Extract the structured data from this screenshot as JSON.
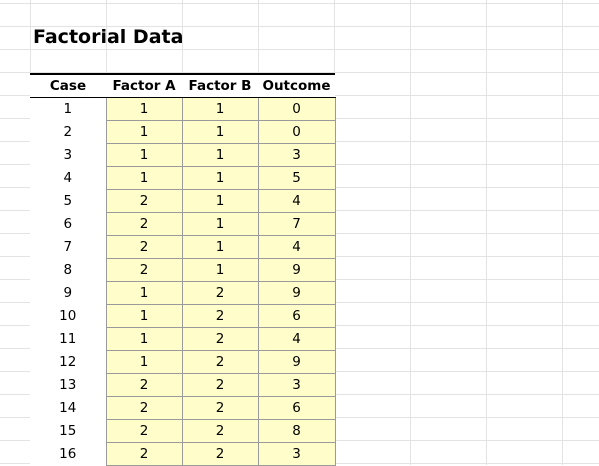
{
  "sheet": {
    "title": "Factorial Data",
    "headers": [
      "Case",
      "Factor A",
      "Factor B",
      "Outcome"
    ],
    "rows": [
      [
        1,
        1,
        1,
        0
      ],
      [
        2,
        1,
        1,
        0
      ],
      [
        3,
        1,
        1,
        3
      ],
      [
        4,
        1,
        1,
        5
      ],
      [
        5,
        2,
        1,
        4
      ],
      [
        6,
        2,
        1,
        7
      ],
      [
        7,
        2,
        1,
        4
      ],
      [
        8,
        2,
        1,
        9
      ],
      [
        9,
        1,
        2,
        9
      ],
      [
        10,
        1,
        2,
        6
      ],
      [
        11,
        1,
        2,
        4
      ],
      [
        12,
        1,
        2,
        9
      ],
      [
        13,
        2,
        2,
        3
      ],
      [
        14,
        2,
        2,
        6
      ],
      [
        15,
        2,
        2,
        8
      ],
      [
        16,
        2,
        2,
        3
      ]
    ]
  },
  "colors": {
    "data_fill": "#fffecb",
    "gridline": "#e3e3e3",
    "cell_border": "#9a9a9a",
    "header_rule": "#000000"
  }
}
